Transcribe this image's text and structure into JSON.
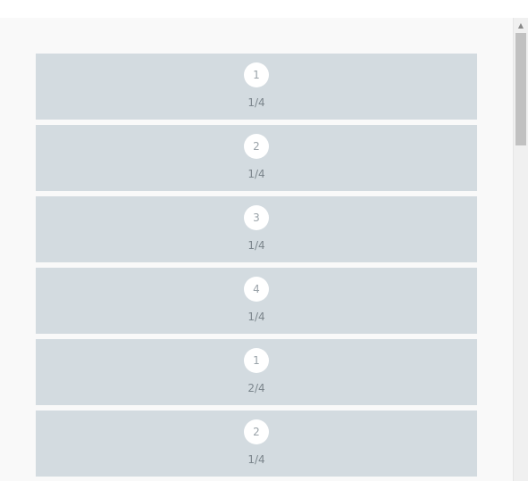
{
  "scrollbar": {
    "up_arrow_icon": "triangle-up"
  },
  "items": [
    {
      "index": "1",
      "fraction": "1/4"
    },
    {
      "index": "2",
      "fraction": "1/4"
    },
    {
      "index": "3",
      "fraction": "1/4"
    },
    {
      "index": "4",
      "fraction": "1/4"
    },
    {
      "index": "1",
      "fraction": "2/4"
    },
    {
      "index": "2",
      "fraction": "1/4"
    }
  ],
  "colors": {
    "page_background": "#f9f9f9",
    "row_background": "#d3dbe0",
    "badge_background": "#ffffff",
    "text": "#7b858c"
  }
}
